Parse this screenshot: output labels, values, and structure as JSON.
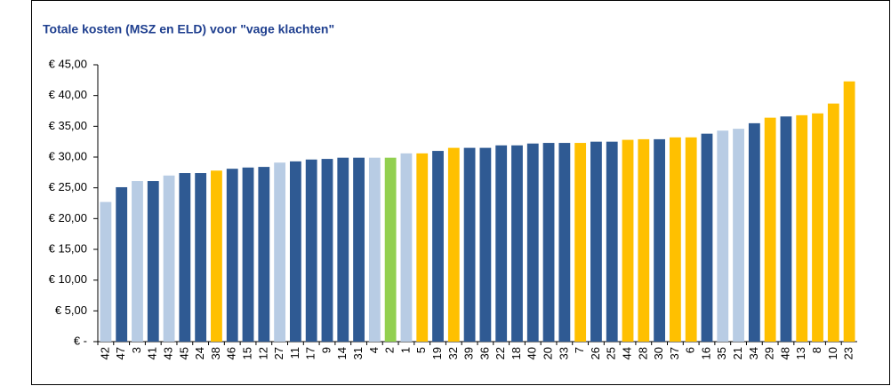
{
  "chart_data": {
    "type": "bar",
    "title": "Totale kosten (MSZ en ELD) voor \"vage klachten\"",
    "categories": [
      "42",
      "47",
      "3",
      "41",
      "43",
      "45",
      "24",
      "38",
      "46",
      "15",
      "12",
      "27",
      "11",
      "17",
      "9",
      "14",
      "31",
      "4",
      "2",
      "1",
      "5",
      "19",
      "32",
      "39",
      "36",
      "22",
      "18",
      "40",
      "20",
      "33",
      "7",
      "26",
      "25",
      "44",
      "28",
      "30",
      "37",
      "6",
      "16",
      "35",
      "21",
      "34",
      "29",
      "48",
      "13",
      "8",
      "10",
      "23"
    ],
    "values": [
      22.7,
      25.1,
      26.1,
      26.1,
      27.0,
      27.4,
      27.4,
      27.8,
      28.1,
      28.3,
      28.4,
      29.1,
      29.3,
      29.6,
      29.7,
      29.9,
      29.9,
      29.9,
      29.9,
      30.6,
      30.6,
      31.0,
      31.5,
      31.5,
      31.5,
      31.9,
      31.9,
      32.2,
      32.3,
      32.3,
      32.3,
      32.5,
      32.5,
      32.8,
      32.9,
      32.9,
      33.2,
      33.2,
      33.8,
      34.3,
      34.6,
      35.5,
      36.4,
      36.6,
      36.8,
      37.1,
      38.7,
      42.3
    ],
    "colors": [
      "#b8cce4",
      "#2f5a93",
      "#b8cce4",
      "#2f5a93",
      "#b8cce4",
      "#2f5a93",
      "#2f5a93",
      "#ffc000",
      "#2f5a93",
      "#2f5a93",
      "#2f5a93",
      "#b8cce4",
      "#2f5a93",
      "#2f5a93",
      "#2f5a93",
      "#2f5a93",
      "#2f5a93",
      "#b8cce4",
      "#92d050",
      "#b8cce4",
      "#ffc000",
      "#2f5a93",
      "#ffc000",
      "#2f5a93",
      "#2f5a93",
      "#2f5a93",
      "#2f5a93",
      "#2f5a93",
      "#2f5a93",
      "#2f5a93",
      "#ffc000",
      "#2f5a93",
      "#2f5a93",
      "#ffc000",
      "#ffc000",
      "#2f5a93",
      "#ffc000",
      "#ffc000",
      "#2f5a93",
      "#b8cce4",
      "#b8cce4",
      "#2f5a93",
      "#ffc000",
      "#2f5a93",
      "#ffc000",
      "#ffc000",
      "#ffc000",
      "#ffc000"
    ],
    "ylim": [
      0,
      45
    ],
    "yticks": [
      {
        "value": 0,
        "label": "€ -"
      },
      {
        "value": 5,
        "label": "€ 5,00"
      },
      {
        "value": 10,
        "label": "€ 10,00"
      },
      {
        "value": 15,
        "label": "€ 15,00"
      },
      {
        "value": 20,
        "label": "€ 20,00"
      },
      {
        "value": 25,
        "label": "€ 25,00"
      },
      {
        "value": 30,
        "label": "€ 30,00"
      },
      {
        "value": 35,
        "label": "€ 35,00"
      },
      {
        "value": 40,
        "label": "€ 40,00"
      },
      {
        "value": 45,
        "label": "€ 45,00"
      }
    ],
    "grid": false
  }
}
